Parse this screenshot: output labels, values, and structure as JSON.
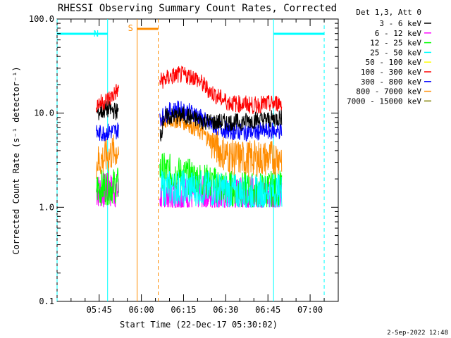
{
  "chart_data": {
    "type": "line",
    "title": "RHESSI Observing Summary Count Rates, Corrected",
    "xlabel": "Start Time (22-Dec-17 05:30:02)",
    "ylabel": "Corrected Count Rate (s⁻¹ detector⁻¹)",
    "yscale": "log",
    "ylim": [
      0.1,
      100.0
    ],
    "xlim": [
      "05:30:02",
      "07:10:00"
    ],
    "xticks": [
      "05:45",
      "06:00",
      "06:15",
      "06:30",
      "06:45",
      "07:00"
    ],
    "yticks": [
      "0.1",
      "1.0",
      "10.0",
      "100.0"
    ],
    "legend_header": "Det 1,3, Att 0",
    "legend_position": "right",
    "markers": {
      "night": [
        {
          "label": "N",
          "from": "05:30:02",
          "to": "05:48:00",
          "color": "#00ffff"
        },
        {
          "label": "",
          "from": "06:47:00",
          "to": "07:05:00",
          "color": "#00ffff"
        }
      ],
      "saa": {
        "label": "S",
        "from": "05:58:30",
        "to": "06:06:00",
        "color": "#ff8c00"
      }
    },
    "series": [
      {
        "name": "3 - 6 keV",
        "color": "#000000",
        "values": [
          [
            "05:44:00",
            10.0
          ],
          [
            "05:48:00",
            11.0
          ],
          [
            "05:51:00",
            10.5
          ],
          [
            "06:07:00",
            6.0
          ],
          [
            "06:08:00",
            9.0
          ],
          [
            "06:15:00",
            9.5
          ],
          [
            "06:20:00",
            8.5
          ],
          [
            "06:25:00",
            8.0
          ],
          [
            "06:30:00",
            8.0
          ],
          [
            "06:35:00",
            8.0
          ],
          [
            "06:40:00",
            8.5
          ],
          [
            "06:45:00",
            8.5
          ],
          [
            "06:50:00",
            9.0
          ]
        ]
      },
      {
        "name": "6 - 12 keV",
        "color": "#ff00ff",
        "values": [
          [
            "05:44:00",
            1.5
          ],
          [
            "05:51:00",
            1.5
          ],
          [
            "06:07:00",
            1.3
          ],
          [
            "06:20:00",
            1.4
          ],
          [
            "06:30:00",
            1.3
          ],
          [
            "06:40:00",
            1.4
          ],
          [
            "06:50:00",
            1.3
          ]
        ]
      },
      {
        "name": "12 - 25 keV",
        "color": "#00ff00",
        "values": [
          [
            "05:44:00",
            1.6
          ],
          [
            "05:51:00",
            1.7
          ],
          [
            "06:07:00",
            2.5
          ],
          [
            "06:20:00",
            2.0
          ],
          [
            "06:30:00",
            1.6
          ],
          [
            "06:40:00",
            1.5
          ],
          [
            "06:50:00",
            1.6
          ]
        ]
      },
      {
        "name": "25 - 50 keV",
        "color": "#00ffff",
        "values": [
          [
            "06:07:00",
            1.6
          ],
          [
            "06:20:00",
            1.6
          ],
          [
            "06:30:00",
            1.5
          ],
          [
            "06:40:00",
            1.4
          ],
          [
            "06:50:00",
            1.5
          ]
        ]
      },
      {
        "name": "50 - 100 keV",
        "color": "#ffff00",
        "values": []
      },
      {
        "name": "100 - 300 keV",
        "color": "#ff0000",
        "values": [
          [
            "05:44:00",
            12.5
          ],
          [
            "05:46:00",
            13.0
          ],
          [
            "05:48:00",
            14.0
          ],
          [
            "05:50:00",
            15.5
          ],
          [
            "05:51:00",
            17.0
          ],
          [
            "06:07:00",
            22.0
          ],
          [
            "06:10:00",
            24.0
          ],
          [
            "06:13:00",
            25.5
          ],
          [
            "06:16:00",
            25.0
          ],
          [
            "06:19:00",
            24.0
          ],
          [
            "06:22:00",
            20.0
          ],
          [
            "06:25:00",
            16.5
          ],
          [
            "06:28:00",
            14.5
          ],
          [
            "06:31:00",
            13.0
          ],
          [
            "06:34:00",
            12.5
          ],
          [
            "06:37:00",
            12.5
          ],
          [
            "06:40:00",
            12.0
          ],
          [
            "06:43:00",
            12.5
          ],
          [
            "06:46:00",
            12.5
          ],
          [
            "06:50:00",
            13.0
          ]
        ]
      },
      {
        "name": "300 - 800 keV",
        "color": "#0000ff",
        "values": [
          [
            "05:44:00",
            6.0
          ],
          [
            "05:48:00",
            6.3
          ],
          [
            "05:51:00",
            6.5
          ],
          [
            "06:07:00",
            9.0
          ],
          [
            "06:10:00",
            10.5
          ],
          [
            "06:13:00",
            11.0
          ],
          [
            "06:16:00",
            10.5
          ],
          [
            "06:19:00",
            10.0
          ],
          [
            "06:22:00",
            8.5
          ],
          [
            "06:25:00",
            7.5
          ],
          [
            "06:28:00",
            7.0
          ],
          [
            "06:31:00",
            6.5
          ],
          [
            "06:35:00",
            6.3
          ],
          [
            "06:40:00",
            6.3
          ],
          [
            "06:45:00",
            6.5
          ],
          [
            "06:50:00",
            6.5
          ]
        ]
      },
      {
        "name": "800 - 7000 keV",
        "color": "#ff8c00",
        "values": [
          [
            "05:44:00",
            3.0
          ],
          [
            "05:48:00",
            3.5
          ],
          [
            "05:51:00",
            4.0
          ],
          [
            "06:07:00",
            8.0
          ],
          [
            "06:10:00",
            8.5
          ],
          [
            "06:13:00",
            8.5
          ],
          [
            "06:16:00",
            8.0
          ],
          [
            "06:19:00",
            7.0
          ],
          [
            "06:22:00",
            6.0
          ],
          [
            "06:25:00",
            5.0
          ],
          [
            "06:28:00",
            4.0
          ],
          [
            "06:31:00",
            3.5
          ],
          [
            "06:35:00",
            3.3
          ],
          [
            "06:40:00",
            3.3
          ],
          [
            "06:45:00",
            3.3
          ],
          [
            "06:50:00",
            3.5
          ]
        ]
      },
      {
        "name": "7000 - 15000 keV",
        "color": "#808000",
        "values": []
      }
    ]
  },
  "footer": {
    "date_stamp": "2-Sep-2022 12:48"
  }
}
